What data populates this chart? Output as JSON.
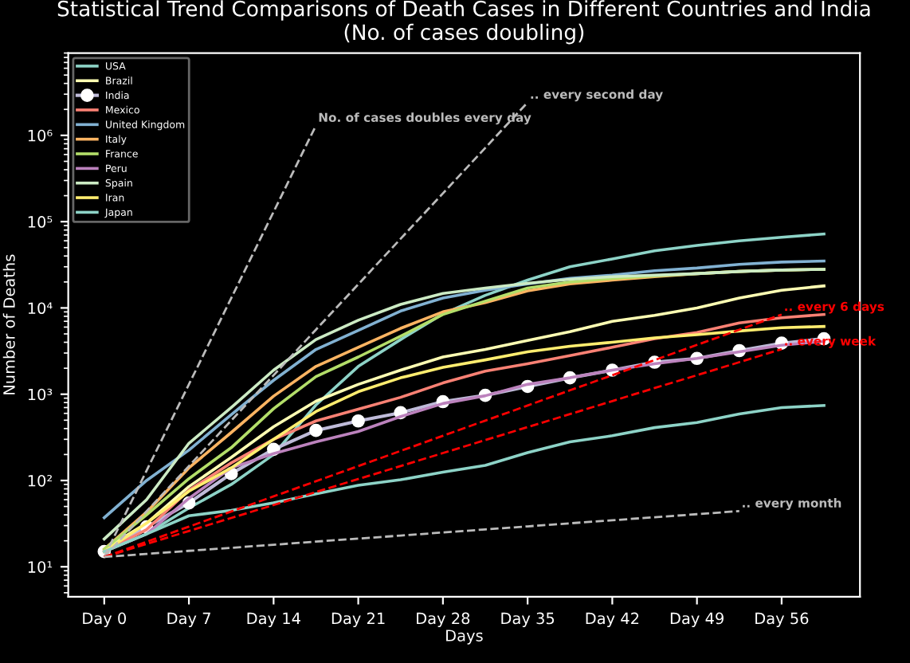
{
  "chart_data": {
    "type": "line",
    "title": "Statistical Trend Comparisons of Death Cases in Different Countries and India\n(No. of cases doubling)",
    "xlabel": "Days",
    "ylabel": "Number of Deaths",
    "log": "y",
    "legend": "top left",
    "grid": false,
    "categories": [
      "Day 0",
      null,
      "Day 7",
      null,
      "Day 14",
      null,
      "Day 21",
      null,
      "Day 28",
      null,
      "Day 35",
      null,
      "Day 42",
      null,
      "Day 49",
      null,
      "Day 56",
      null
    ],
    "ylim": [
      4.5,
      9000000
    ],
    "yticks": [
      {
        "value": 10,
        "label": "10¹"
      },
      {
        "value": 100,
        "label": "10²"
      },
      {
        "value": 1000,
        "label": "10³"
      },
      {
        "value": 10000,
        "label": "10⁴"
      },
      {
        "value": 100000,
        "label": "10⁵"
      },
      {
        "value": 1000000,
        "label": "10⁶"
      }
    ],
    "series": [
      {
        "name": "USA",
        "color": "#8dd3c7",
        "values": [
          15,
          24,
          48,
          90,
          200,
          750,
          2100,
          4300,
          8500,
          14000,
          21000,
          30000,
          37000,
          46000,
          53000,
          60000,
          66000,
          72000
        ]
      },
      {
        "name": "Brazil",
        "color": "#feffb3",
        "values": [
          16,
          32,
          85,
          185,
          420,
          830,
          1300,
          1900,
          2700,
          3300,
          4200,
          5300,
          7000,
          8200,
          10000,
          13000,
          16000,
          18000
        ]
      },
      {
        "name": "India",
        "color": "#bfbbd9",
        "marker": "circle",
        "values": [
          15,
          29,
          55,
          120,
          230,
          380,
          490,
          610,
          820,
          970,
          1230,
          1550,
          1900,
          2350,
          2600,
          3200,
          3900,
          4400
        ]
      },
      {
        "name": "Mexico",
        "color": "#fa8174",
        "values": [
          15,
          27,
          77,
          160,
          300,
          490,
          670,
          920,
          1350,
          1850,
          2250,
          2800,
          3500,
          4400,
          5200,
          6700,
          7700,
          8400
        ]
      },
      {
        "name": "United Kingdom",
        "color": "#81b1d2",
        "values": [
          37,
          100,
          225,
          580,
          1450,
          3300,
          5500,
          9200,
          13000,
          16000,
          19000,
          22000,
          24000,
          27000,
          29000,
          32000,
          34000,
          35000
        ]
      },
      {
        "name": "Italy",
        "color": "#fdb462",
        "values": [
          16,
          43,
          140,
          360,
          950,
          2100,
          3500,
          5800,
          9000,
          11500,
          15800,
          19000,
          21000,
          23000,
          25000,
          26500,
          27500,
          28000
        ]
      },
      {
        "name": "France",
        "color": "#b3de69",
        "values": [
          16,
          40,
          105,
          240,
          680,
          1600,
          2700,
          4700,
          8400,
          12000,
          17000,
          20000,
          22000,
          23500,
          25000,
          26500,
          27500,
          28000
        ]
      },
      {
        "name": "Peru",
        "color": "#bc82bd",
        "values": [
          15,
          24,
          62,
          140,
          205,
          280,
          370,
          550,
          780,
          960,
          1300,
          1550,
          1900,
          2250,
          2600,
          3100,
          3700,
          4100
        ]
      },
      {
        "name": "Spain",
        "color": "#ccebc4",
        "values": [
          21,
          60,
          270,
          700,
          1900,
          4300,
          7200,
          11000,
          14700,
          17000,
          19300,
          21500,
          23000,
          24000,
          25000,
          26500,
          27500,
          28000
        ]
      },
      {
        "name": "Iran",
        "color": "#ffed6f",
        "values": [
          15,
          32,
          75,
          140,
          300,
          630,
          1070,
          1550,
          2050,
          2500,
          3100,
          3600,
          4000,
          4500,
          4900,
          5400,
          5900,
          6100
        ]
      },
      {
        "name": "Japan",
        "color": "#8dd3c7",
        "values": [
          15,
          24,
          39,
          45,
          55,
          70,
          88,
          102,
          125,
          150,
          210,
          280,
          330,
          410,
          470,
          590,
          700,
          740
        ]
      },
      {
        "name": "No. of cases doubles every day",
        "type": "line",
        "line_style": "dashed",
        "color": "#bbbbbb",
        "values": [
          13,
          130,
          1300,
          13000,
          130000,
          1300000,
          null,
          null,
          null,
          null,
          null,
          null,
          null,
          null,
          null,
          null,
          null,
          null
        ]
      },
      {
        "name": ".. every second day",
        "type": "line",
        "line_style": "dashed",
        "color": "#bbbbbb",
        "values": [
          13,
          44,
          147,
          495,
          1660,
          5600,
          18800,
          63300,
          213000,
          716000,
          2410000,
          null,
          null,
          null,
          null,
          null,
          null,
          null
        ]
      },
      {
        "name": ".. every 6 days",
        "type": "line",
        "line_style": "dashed",
        "color": "#ff0000",
        "values": [
          13,
          19.5,
          29.2,
          43.7,
          65.5,
          98,
          147,
          220,
          330,
          494,
          740,
          1110,
          1660,
          2490,
          3730,
          5590,
          8370,
          null
        ]
      },
      {
        "name": ".. every week",
        "type": "line",
        "line_style": "dashed",
        "color": "#ff0000",
        "values": [
          13,
          18.4,
          26,
          36.8,
          52,
          73.5,
          104,
          147,
          208,
          294,
          416,
          588,
          832,
          1180,
          1660,
          2350,
          3330,
          null
        ]
      },
      {
        "name": ".. every month",
        "type": "line",
        "line_style": "dashed",
        "color": "#bbbbbb",
        "values": [
          13,
          14.1,
          15.3,
          16.6,
          18.0,
          19.6,
          21.2,
          23.0,
          25.0,
          27.1,
          29.4,
          31.9,
          34.6,
          37.5,
          40.7,
          44.2,
          null,
          null
        ]
      }
    ]
  }
}
